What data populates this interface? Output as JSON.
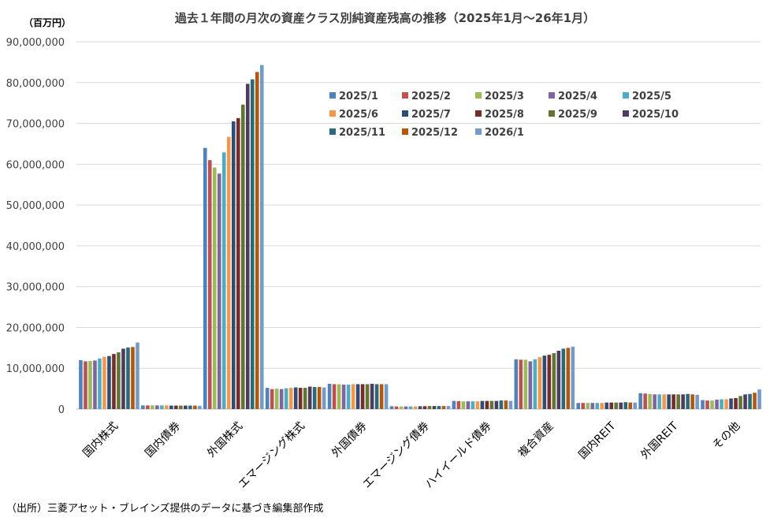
{
  "chart_data": {
    "type": "bar",
    "title": "過去１年間の月次の資産クラス別純資産残高の推移（2025年1月～26年1月）",
    "ylabel": "（百万円）",
    "xlabel": "",
    "ylim": [
      0,
      90000000
    ],
    "yticks": [
      "0",
      "10,000,000",
      "20,000,000",
      "30,000,000",
      "40,000,000",
      "50,000,000",
      "60,000,000",
      "70,000,000",
      "80,000,000",
      "90,000,000"
    ],
    "grid": true,
    "legend_position": "top-right (inside plot)",
    "categories": [
      "国内株式",
      "国内債券",
      "外国株式",
      "エマージング株式",
      "外国債券",
      "エマージング債券",
      "ハイイールド債券",
      "複合資産",
      "国内REIT",
      "外国REIT",
      "その他"
    ],
    "series": [
      {
        "name": "2025/1",
        "color": "#4F81BD",
        "values": [
          12000000,
          900000,
          64000000,
          5200000,
          6200000,
          700000,
          2000000,
          12200000,
          1500000,
          3900000,
          2200000
        ]
      },
      {
        "name": "2025/2",
        "color": "#C0504D",
        "values": [
          11700000,
          900000,
          61000000,
          4900000,
          6100000,
          650000,
          1950000,
          12100000,
          1500000,
          3800000,
          2100000
        ]
      },
      {
        "name": "2025/3",
        "color": "#9BBB59",
        "values": [
          11800000,
          900000,
          59200000,
          5000000,
          6100000,
          650000,
          1900000,
          12100000,
          1500000,
          3700000,
          2100000
        ]
      },
      {
        "name": "2025/4",
        "color": "#8064A2",
        "values": [
          11900000,
          900000,
          57700000,
          4900000,
          6000000,
          650000,
          1900000,
          11700000,
          1500000,
          3600000,
          2300000
        ]
      },
      {
        "name": "2025/5",
        "color": "#4BACC6",
        "values": [
          12400000,
          900000,
          62900000,
          5100000,
          6000000,
          650000,
          1900000,
          12200000,
          1500000,
          3600000,
          2400000
        ]
      },
      {
        "name": "2025/6",
        "color": "#F79646",
        "values": [
          12800000,
          900000,
          66700000,
          5200000,
          6100000,
          650000,
          1900000,
          12700000,
          1500000,
          3600000,
          2400000
        ]
      },
      {
        "name": "2025/7",
        "color": "#2C4D75",
        "values": [
          13000000,
          850000,
          70500000,
          5300000,
          6100000,
          700000,
          2000000,
          13100000,
          1600000,
          3600000,
          2600000
        ]
      },
      {
        "name": "2025/8",
        "color": "#772C2A",
        "values": [
          13500000,
          850000,
          71300000,
          5200000,
          6100000,
          700000,
          2000000,
          13300000,
          1600000,
          3600000,
          2700000
        ]
      },
      {
        "name": "2025/9",
        "color": "#5F7530",
        "values": [
          13900000,
          850000,
          74600000,
          5200000,
          6100000,
          750000,
          2000000,
          13700000,
          1600000,
          3600000,
          3200000
        ]
      },
      {
        "name": "2025/10",
        "color": "#4D3B62",
        "values": [
          14800000,
          850000,
          79700000,
          5500000,
          6200000,
          750000,
          2000000,
          14300000,
          1600000,
          3600000,
          3600000
        ]
      },
      {
        "name": "2025/11",
        "color": "#276A7C",
        "values": [
          15100000,
          850000,
          80800000,
          5400000,
          6100000,
          750000,
          2100000,
          14800000,
          1700000,
          3700000,
          3700000
        ]
      },
      {
        "name": "2025/12",
        "color": "#B65708",
        "values": [
          15200000,
          850000,
          82600000,
          5400000,
          6100000,
          750000,
          2100000,
          15000000,
          1600000,
          3600000,
          4000000
        ]
      },
      {
        "name": "2026/1",
        "color": "#729ACA",
        "values": [
          16300000,
          800000,
          84300000,
          5300000,
          6100000,
          750000,
          2000000,
          15300000,
          1600000,
          3500000,
          4800000
        ]
      }
    ]
  },
  "footer": "（出所）三菱アセット・ブレインズ提供のデータに基づき編集部作成"
}
